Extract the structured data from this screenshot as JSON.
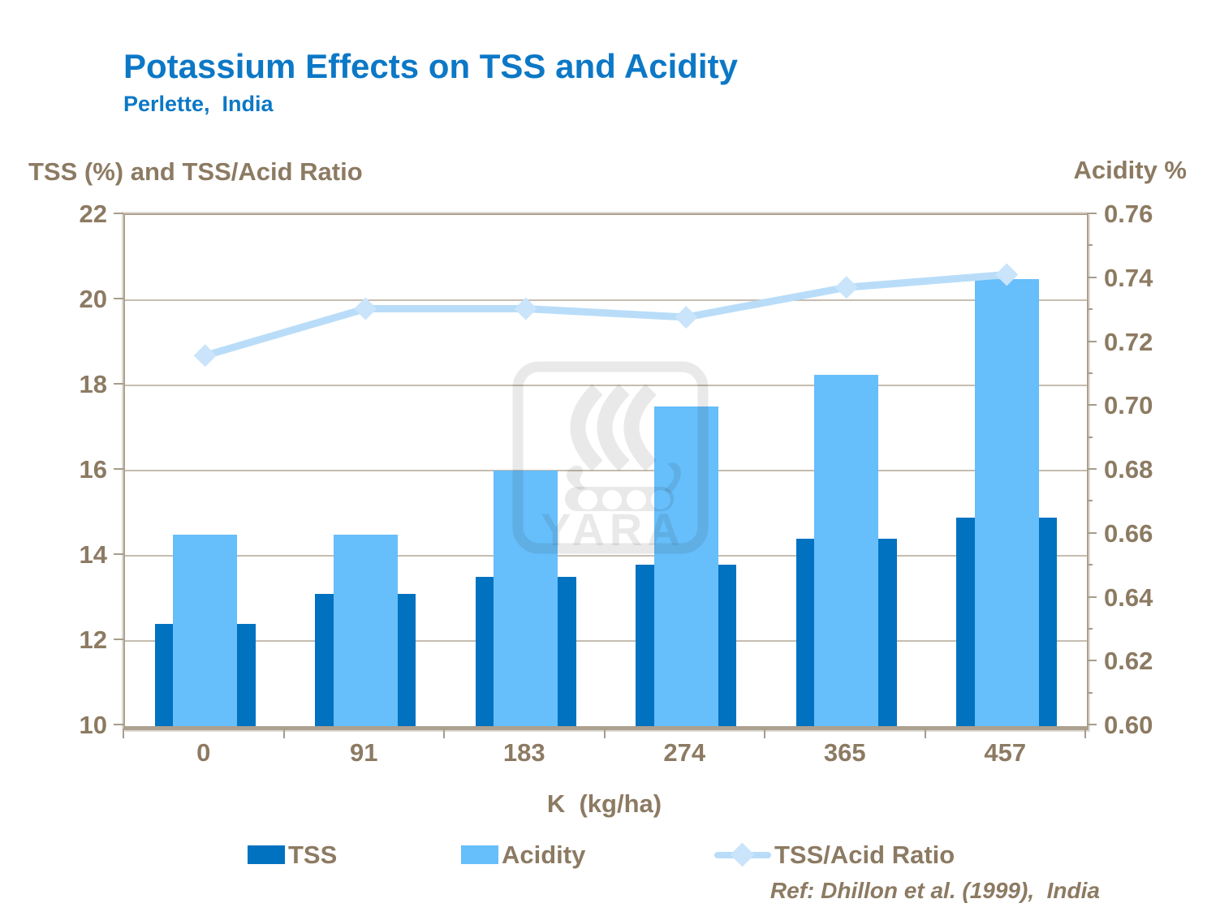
{
  "header": {
    "title": "Potassium Effects on TSS and Acidity",
    "subtitle": "Perlette,  India"
  },
  "axes": {
    "left_title": "TSS (%) and TSS/Acid Ratio",
    "right_title": "Acidity %",
    "x_title": "K  (kg/ha)"
  },
  "legend": {
    "items": [
      {
        "label": "TSS",
        "swatch": "square-dark-blue"
      },
      {
        "label": "Acidity",
        "swatch": "square-light-blue"
      },
      {
        "label": "TSS/Acid Ratio",
        "swatch": "line-with-diamond"
      }
    ]
  },
  "footer": {
    "ref": "Ref: Dhillon et al. (1999),  India"
  },
  "watermark": {
    "text": "YARA",
    "icon": "yara-viking-ship-logo"
  },
  "colors": {
    "title_blue": "#0c78c6",
    "text_taupe": "#8c7a62",
    "bar_dark_blue": "#0072c0",
    "bar_light_blue": "#66befa",
    "ratio_line": "#b9ddf9",
    "ratio_marker": "#c9e4fb",
    "gridline": "#c6bdb0",
    "axis_frame": "#aca08f"
  },
  "chart_data": {
    "type": "bar+line combo",
    "title": "Potassium Effects on TSS and Acidity",
    "subtitle": "Perlette, India",
    "categories": [
      "0",
      "91",
      "183",
      "274",
      "365",
      "457"
    ],
    "series": [
      {
        "name": "TSS",
        "type": "bar",
        "axis": "left",
        "values": [
          12.4,
          13.1,
          13.5,
          13.8,
          14.4,
          14.9
        ]
      },
      {
        "name": "Acidity",
        "type": "bar",
        "axis": "right",
        "values": [
          0.66,
          0.66,
          0.68,
          0.7,
          0.71,
          0.74
        ]
      },
      {
        "name": "TSS/Acid Ratio",
        "type": "line",
        "axis": "left",
        "marker": "diamond",
        "values": [
          18.7,
          19.8,
          19.8,
          19.6,
          20.3,
          20.6
        ]
      }
    ],
    "left_axis": {
      "label": "TSS (%) and TSS/Acid Ratio",
      "min": 10,
      "max": 22,
      "tick_step": 2
    },
    "right_axis": {
      "label": "Acidity %",
      "min": 0.6,
      "max": 0.76,
      "tick_step": 0.02,
      "minor_tick_step": 0.01
    },
    "x_axis": {
      "label": "K  (kg/ha)"
    },
    "grid": "horizontal major gridlines",
    "legend_position": "bottom"
  }
}
